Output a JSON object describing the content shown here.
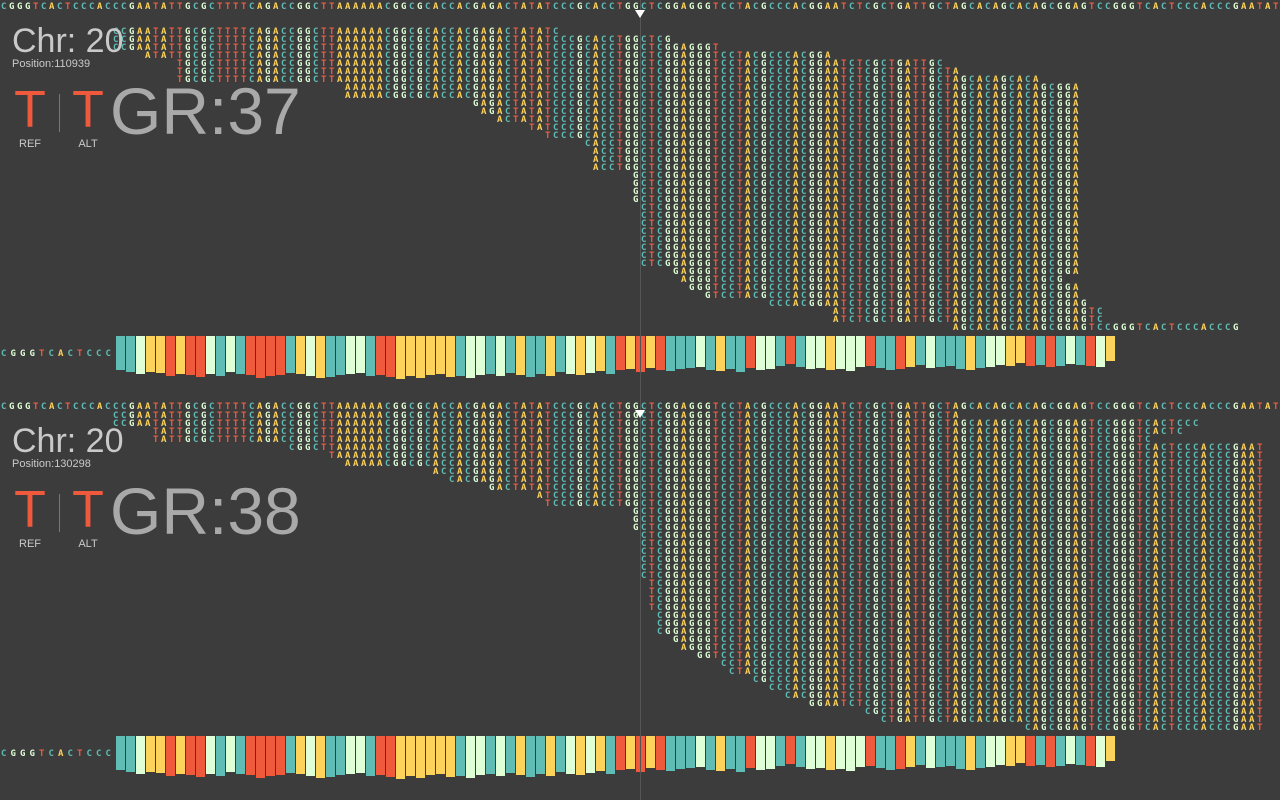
{
  "colors": {
    "background": "#3c3c3c",
    "A": "#fdd35b",
    "C": "#5fbdb5",
    "G": "#dfffd6",
    "T": "#f05a3c",
    "allele": "#f05a3c",
    "gr_text": "#a9a9a9",
    "label_text": "#c9c9c9"
  },
  "reference_sequence": "CGGGTCACTCCCACCCGAATATTGCGCTTTTCAGACCGGCTTAAAAAACGGCGCACCACGAGACTATATCCCGCACCTGGCTCGGAGGGTCCTACGCCCACGGAATCTCGCTGATTGCTAGCACAGCACAGCGGAGTC",
  "panels": [
    {
      "chr_label": "Chr: 20",
      "position_label": "Position:110939",
      "ref_base": "T",
      "ref_tag": "REF",
      "alt_base": "T",
      "alt_tag": "ALT",
      "gr_label": "GR:37",
      "center_marker": "▼",
      "seq_offset": 0,
      "reads": [
        {
          "r": 0,
          "s": 119,
          "e": 155
        },
        {
          "r": 1,
          "s": 104,
          "e": 138
        },
        {
          "r": 2,
          "s": 104,
          "e": 138
        },
        {
          "r": 3,
          "s": 96,
          "e": 136
        },
        {
          "r": 4,
          "s": 88,
          "e": 135
        },
        {
          "r": 5,
          "s": 86,
          "e": 135
        },
        {
          "r": 6,
          "s": 85,
          "e": 133
        },
        {
          "r": 7,
          "s": 84,
          "e": 135
        },
        {
          "r": 8,
          "s": 80,
          "e": 135
        },
        {
          "r": 9,
          "s": 80,
          "e": 135
        },
        {
          "r": 10,
          "s": 80,
          "e": 135
        },
        {
          "r": 11,
          "s": 80,
          "e": 135
        },
        {
          "r": 12,
          "s": 80,
          "e": 135
        },
        {
          "r": 13,
          "s": 80,
          "e": 135
        },
        {
          "r": 14,
          "s": 80,
          "e": 135
        },
        {
          "r": 15,
          "s": 80,
          "e": 135
        },
        {
          "r": 16,
          "s": 79,
          "e": 135
        },
        {
          "r": 17,
          "s": 79,
          "e": 135
        },
        {
          "r": 18,
          "s": 79,
          "e": 135
        },
        {
          "r": 19,
          "s": 79,
          "e": 135
        },
        {
          "r": 20,
          "s": 74,
          "e": 135
        },
        {
          "r": 21,
          "s": 74,
          "e": 135
        },
        {
          "r": 22,
          "s": 74,
          "e": 135
        },
        {
          "r": 23,
          "s": 73,
          "e": 135
        },
        {
          "r": 24,
          "s": 68,
          "e": 135
        },
        {
          "r": 25,
          "s": 66,
          "e": 135
        },
        {
          "r": 26,
          "s": 62,
          "e": 135
        },
        {
          "r": 27,
          "s": 60,
          "e": 135
        },
        {
          "r": 28,
          "s": 59,
          "e": 135
        },
        {
          "r": 29,
          "s": 43,
          "e": 135
        },
        {
          "r": 30,
          "s": 43,
          "e": 135
        },
        {
          "r": 31,
          "s": 22,
          "e": 130
        },
        {
          "r": 32,
          "s": 22,
          "e": 120
        },
        {
          "r": 33,
          "s": 22,
          "e": 118
        },
        {
          "r": 34,
          "s": 18,
          "e": 104
        },
        {
          "r": 35,
          "s": 14,
          "e": 90
        },
        {
          "r": 36,
          "s": 14,
          "e": 84
        },
        {
          "r": 37,
          "s": 14,
          "e": 70
        }
      ],
      "coverage": [
        34,
        36,
        38,
        36,
        37,
        40,
        38,
        39,
        41,
        38,
        40,
        36,
        38,
        39,
        42,
        40,
        39,
        37,
        38,
        40,
        42,
        41,
        39,
        38,
        37,
        40,
        39,
        41,
        43,
        40,
        42,
        39,
        38,
        41,
        40,
        42,
        39,
        38,
        40,
        37,
        39,
        41,
        38,
        40,
        36,
        38,
        39,
        37,
        35,
        38,
        34,
        33,
        36,
        32,
        34,
        35,
        33,
        32,
        31,
        34,
        35,
        33,
        36,
        32,
        34,
        33,
        30,
        28,
        31,
        33,
        32,
        34,
        33,
        35,
        31,
        30,
        32,
        34,
        33,
        31,
        29,
        32,
        31,
        30,
        33,
        34,
        32,
        31,
        29,
        30,
        27,
        30,
        29,
        31,
        30,
        28,
        29,
        30,
        31,
        25
      ]
    },
    {
      "chr_label": "Chr: 20",
      "position_label": "Position:130298",
      "ref_base": "T",
      "ref_tag": "REF",
      "alt_base": "T",
      "alt_tag": "ALT",
      "gr_label": "GR:38",
      "center_marker": "▼",
      "seq_offset": 0,
      "reads": [
        {
          "r": 0,
          "s": 128,
          "e": 158
        },
        {
          "r": 1,
          "s": 110,
          "e": 158
        },
        {
          "r": 2,
          "s": 108,
          "e": 158
        },
        {
          "r": 3,
          "s": 101,
          "e": 158
        },
        {
          "r": 4,
          "s": 98,
          "e": 158
        },
        {
          "r": 5,
          "s": 96,
          "e": 158
        },
        {
          "r": 6,
          "s": 94,
          "e": 158
        },
        {
          "r": 7,
          "s": 91,
          "e": 158
        },
        {
          "r": 8,
          "s": 90,
          "e": 158
        },
        {
          "r": 9,
          "s": 87,
          "e": 158
        },
        {
          "r": 10,
          "s": 85,
          "e": 158
        },
        {
          "r": 11,
          "s": 84,
          "e": 158
        },
        {
          "r": 12,
          "s": 82,
          "e": 158
        },
        {
          "r": 13,
          "s": 82,
          "e": 158
        },
        {
          "r": 14,
          "s": 82,
          "e": 158
        },
        {
          "r": 15,
          "s": 81,
          "e": 158
        },
        {
          "r": 16,
          "s": 81,
          "e": 158
        },
        {
          "r": 17,
          "s": 81,
          "e": 158
        },
        {
          "r": 18,
          "s": 81,
          "e": 158
        },
        {
          "r": 19,
          "s": 80,
          "e": 158
        },
        {
          "r": 20,
          "s": 80,
          "e": 158
        },
        {
          "r": 21,
          "s": 80,
          "e": 158
        },
        {
          "r": 22,
          "s": 80,
          "e": 158
        },
        {
          "r": 23,
          "s": 80,
          "e": 158
        },
        {
          "r": 24,
          "s": 80,
          "e": 158
        },
        {
          "r": 25,
          "s": 79,
          "e": 158
        },
        {
          "r": 26,
          "s": 79,
          "e": 158
        },
        {
          "r": 27,
          "s": 79,
          "e": 158
        },
        {
          "r": 28,
          "s": 68,
          "e": 158
        },
        {
          "r": 29,
          "s": 67,
          "e": 158
        },
        {
          "r": 30,
          "s": 61,
          "e": 158
        },
        {
          "r": 31,
          "s": 56,
          "e": 158
        },
        {
          "r": 32,
          "s": 54,
          "e": 158
        },
        {
          "r": 33,
          "s": 43,
          "e": 158
        },
        {
          "r": 34,
          "s": 41,
          "e": 158
        },
        {
          "r": 35,
          "s": 36,
          "e": 158
        },
        {
          "r": 36,
          "s": 19,
          "e": 144
        },
        {
          "r": 37,
          "s": 19,
          "e": 148
        },
        {
          "r": 38,
          "s": 14,
          "e": 150
        },
        {
          "r": 39,
          "s": 14,
          "e": 120
        }
      ],
      "coverage": [
        34,
        36,
        38,
        36,
        37,
        40,
        38,
        39,
        41,
        38,
        40,
        36,
        38,
        39,
        42,
        40,
        39,
        37,
        38,
        40,
        42,
        41,
        39,
        38,
        37,
        40,
        39,
        41,
        43,
        40,
        42,
        39,
        38,
        41,
        40,
        42,
        39,
        38,
        40,
        37,
        39,
        41,
        38,
        40,
        36,
        38,
        39,
        37,
        35,
        38,
        34,
        33,
        36,
        32,
        34,
        35,
        33,
        32,
        31,
        34,
        35,
        33,
        36,
        32,
        34,
        33,
        30,
        28,
        31,
        33,
        32,
        34,
        33,
        35,
        31,
        30,
        32,
        34,
        33,
        31,
        29,
        32,
        31,
        30,
        33,
        34,
        32,
        31,
        29,
        30,
        27,
        30,
        29,
        31,
        30,
        28,
        29,
        30,
        31,
        25
      ]
    }
  ]
}
